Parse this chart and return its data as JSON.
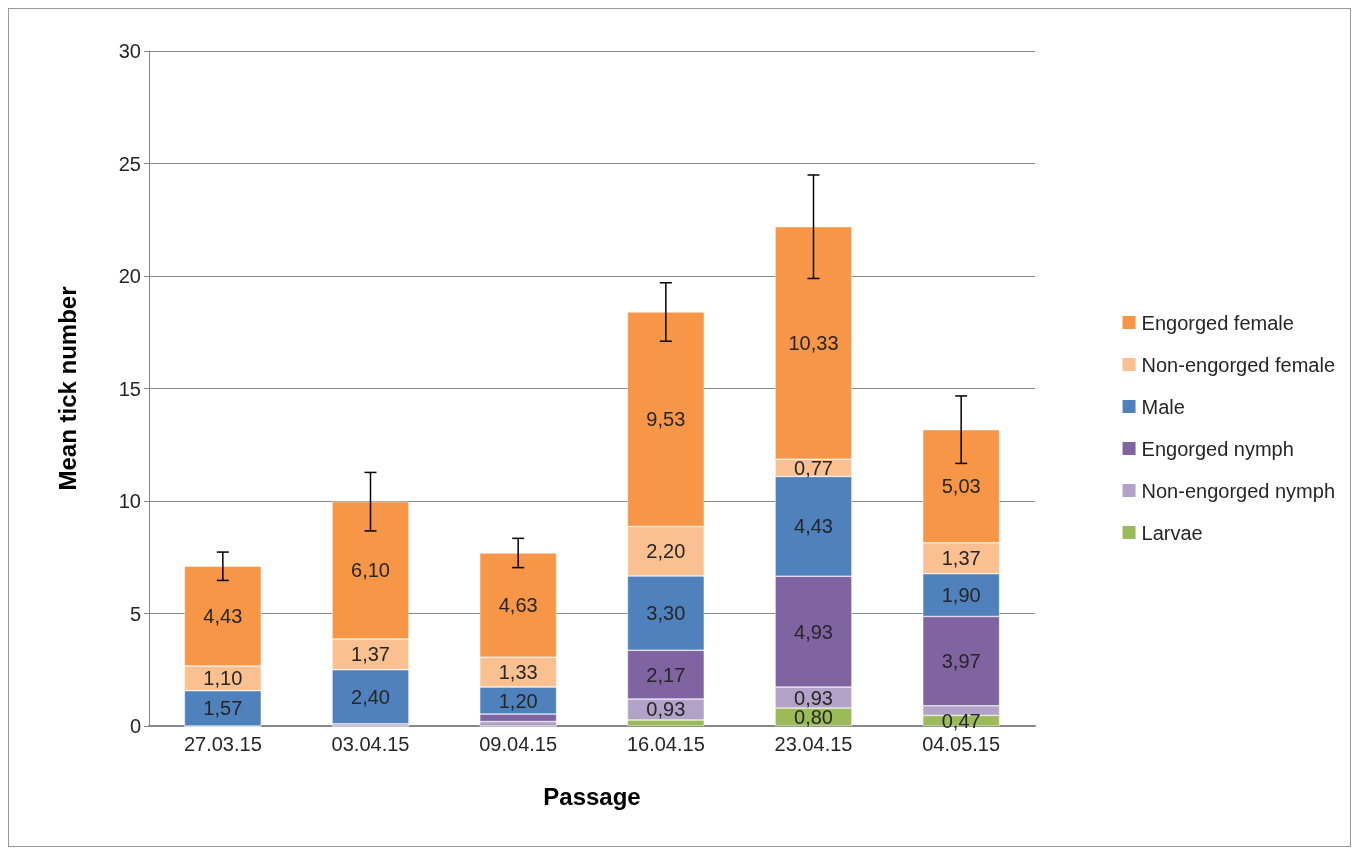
{
  "chart_data": {
    "type": "bar",
    "stacked": true,
    "xlabel": "Passage",
    "ylabel": "Mean tick number",
    "categories": [
      "27.03.15",
      "03.04.15",
      "09.04.15",
      "16.04.15",
      "23.04.15",
      "04.05.15"
    ],
    "ylim": [
      0,
      30
    ],
    "yticks": [
      0,
      5,
      10,
      15,
      20,
      25,
      30
    ],
    "grid": "y",
    "legend": "right",
    "series": [
      {
        "name": "Larvae",
        "color": "#9bbb59",
        "values": [
          0,
          0,
          0,
          0.27,
          0.8,
          0.47
        ],
        "value_labels": [
          null,
          null,
          null,
          null,
          "0,80",
          "0,47"
        ]
      },
      {
        "name": "Non-engorged nymph",
        "color": "#b3a2c7",
        "values": [
          0,
          0.1,
          0.2,
          0.93,
          0.93,
          0.43
        ],
        "value_labels": [
          null,
          null,
          null,
          "0,93",
          "0,93",
          null
        ]
      },
      {
        "name": "Engorged nymph",
        "color": "#8064a2",
        "values": [
          null,
          null,
          0.33,
          2.17,
          4.93,
          3.97
        ],
        "value_labels": [
          null,
          null,
          null,
          "2,17",
          "4,93",
          "3,97"
        ]
      },
      {
        "name": "Male",
        "color": "#4f81bd",
        "values": [
          1.57,
          2.4,
          1.2,
          3.3,
          4.43,
          1.9
        ],
        "value_labels": [
          "1,57",
          "2,40",
          "1,20",
          "3,30",
          "4,43",
          "1,90"
        ]
      },
      {
        "name": "Non-engorged female",
        "color": "#fac090",
        "values": [
          1.1,
          1.37,
          1.33,
          2.2,
          0.77,
          1.37
        ],
        "value_labels": [
          "1,10",
          "1,37",
          "1,33",
          "2,20",
          "0,77",
          "1,37"
        ]
      },
      {
        "name": "Engorged female",
        "color": "#f79646",
        "values": [
          4.43,
          6.1,
          4.63,
          9.53,
          10.33,
          5.03
        ],
        "value_labels": [
          "4,43",
          "6,10",
          "4,63",
          "9,53",
          "10,33",
          "5,03"
        ],
        "errors": [
          0.63,
          1.3,
          0.65,
          1.3,
          2.3,
          1.5
        ]
      }
    ]
  }
}
